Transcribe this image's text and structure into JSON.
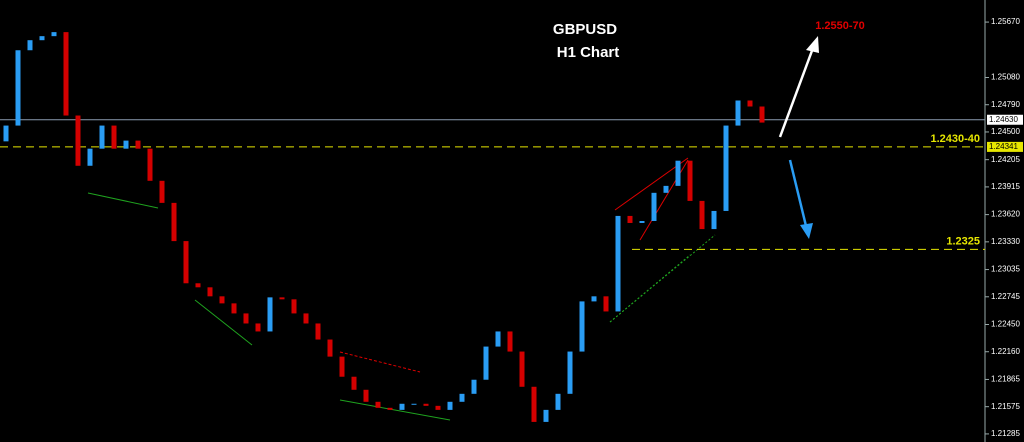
{
  "chart_data": {
    "type": "candlestick",
    "title": "GBPUSD",
    "subtitle": "H1 Chart",
    "target_label": "1.2550-70",
    "target_color": "#e00000",
    "up_color": "#2a9df4",
    "down_color": "#d40000",
    "ylim": [
      1.21199,
      1.25905
    ],
    "yticks": [
      {
        "value": 1.2567,
        "label": "1.25670"
      },
      {
        "value": 1.2508,
        "label": "1.25080"
      },
      {
        "value": 1.2479,
        "label": "1.24790"
      },
      {
        "value": 1.245,
        "label": "1.24500"
      },
      1.24205,
      1.23915,
      {
        "value": 1.2362,
        "label": "1.23620"
      },
      {
        "value": 1.2333,
        "label": "1.23330"
      },
      1.23035,
      1.22745,
      {
        "value": 1.2245,
        "label": "1.22450"
      },
      {
        "value": 1.2216,
        "label": "1.22160"
      },
      1.21865,
      1.21575,
      1.21285
    ],
    "open": [
      1.244,
      1.24568,
      1.2537,
      1.25477,
      1.2552,
      1.25563,
      1.24675,
      1.2414,
      1.24322,
      1.24568,
      1.24322,
      1.24408,
      1.24322,
      1.2398,
      1.23745,
      1.23338,
      1.22889,
      1.22846,
      1.2275,
      1.22675,
      1.22568,
      1.22461,
      1.22376,
      1.22739,
      1.22718,
      1.22568,
      1.22461,
      1.2229,
      1.22108,
      1.21894,
      1.21755,
      1.21627,
      1.21563,
      1.21541,
      1.21606,
      1.21606,
      1.21584,
      1.21541,
      1.21627,
      1.21712,
      1.21862,
      1.22215,
      1.22376,
      1.22162,
      1.21787,
      1.21413,
      1.21541,
      1.21712,
      1.22162,
      1.22696,
      1.2275,
      1.22589,
      1.23606,
      1.23531,
      1.23552,
      1.23852,
      1.23926,
      1.24194,
      1.23766,
      1.23466,
      1.23659,
      1.24568,
      1.24835,
      1.24771
    ],
    "close": [
      1.24568,
      1.2537,
      1.25477,
      1.2552,
      1.25563,
      1.24675,
      1.2414,
      1.24322,
      1.24568,
      1.24322,
      1.24408,
      1.24322,
      1.2398,
      1.23745,
      1.23338,
      1.22889,
      1.22846,
      1.2275,
      1.22675,
      1.22568,
      1.22461,
      1.22376,
      1.22739,
      1.22718,
      1.22568,
      1.22461,
      1.2229,
      1.22108,
      1.21894,
      1.21755,
      1.21627,
      1.21563,
      1.21541,
      1.21606,
      1.21606,
      1.21584,
      1.21541,
      1.21627,
      1.21712,
      1.21862,
      1.22215,
      1.22376,
      1.22162,
      1.21787,
      1.21413,
      1.21541,
      1.21712,
      1.22162,
      1.22696,
      1.2275,
      1.22589,
      1.23606,
      1.23531,
      1.23552,
      1.23852,
      1.23926,
      1.24194,
      1.23766,
      1.23466,
      1.23659,
      1.24568,
      1.24835,
      1.24771,
      1.246
    ],
    "levels": [
      {
        "value": 1.2463,
        "label": "1.24630",
        "color": "#8a9bb0",
        "dashed": false
      },
      {
        "value": 1.24341,
        "label": "1.24341",
        "note": "1.2430-40",
        "color": "#e6e600",
        "dashed": true
      },
      {
        "value": 1.2325,
        "note": "1.2325",
        "color": "#e6e600",
        "dashed": true
      }
    ]
  }
}
